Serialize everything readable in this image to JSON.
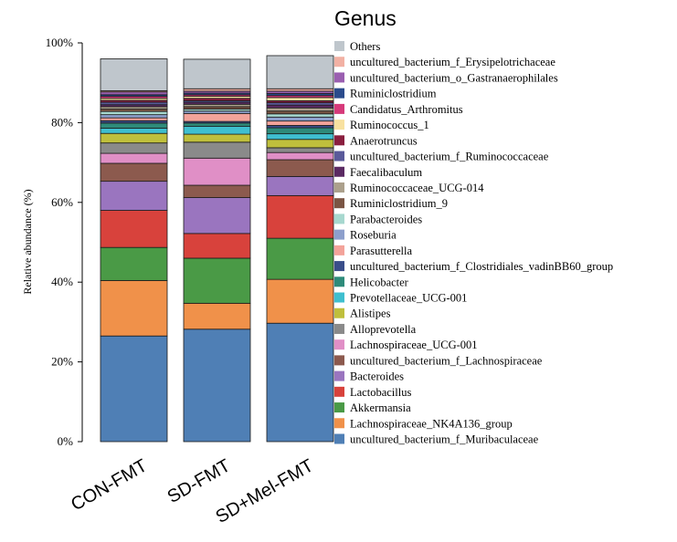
{
  "chart_data": {
    "type": "bar",
    "stacked": true,
    "ylabel": "Relative abundance (%)",
    "ylim": [
      0,
      100
    ],
    "yticks": [
      "0%",
      "20%",
      "40%",
      "60%",
      "80%",
      "100%"
    ],
    "categories": [
      "CON-FMT",
      "SD-FMT",
      "SD+Mel-FMT"
    ],
    "legend_title": "Genus",
    "legend_position": "right",
    "series": [
      {
        "name": "uncultured_bacterium_f_Muribaculaceae",
        "color": "#4f7fb5",
        "values": [
          26.5,
          28.2,
          29.7
        ]
      },
      {
        "name": "Lachnospiraceae_NK4A136_group",
        "color": "#f0914a",
        "values": [
          13.9,
          6.5,
          11.0
        ]
      },
      {
        "name": "Akkermansia",
        "color": "#4a9a46",
        "values": [
          8.3,
          11.3,
          10.3
        ]
      },
      {
        "name": "Lactobacillus",
        "color": "#d8423c",
        "values": [
          9.3,
          6.2,
          10.7
        ]
      },
      {
        "name": "Bacteroides",
        "color": "#9a75bf",
        "values": [
          7.3,
          9.0,
          4.8
        ]
      },
      {
        "name": "uncultured_bacterium_f_Lachnospiraceae",
        "color": "#8c5a4e",
        "values": [
          4.5,
          3.1,
          4.2
        ]
      },
      {
        "name": "Lachnospiraceae_UCG-001",
        "color": "#e08fc6",
        "values": [
          2.5,
          6.8,
          1.8
        ]
      },
      {
        "name": "Alloprevotella",
        "color": "#8a8a8a",
        "values": [
          2.6,
          4.0,
          1.2
        ]
      },
      {
        "name": "Alistipes",
        "color": "#bfbf3c",
        "values": [
          2.4,
          2.0,
          2.1
        ]
      },
      {
        "name": "Prevotellaceae_UCG-001",
        "color": "#3fbfcf",
        "values": [
          1.3,
          2.0,
          1.4
        ]
      },
      {
        "name": "Helicobacter",
        "color": "#2e8b7a",
        "values": [
          1.3,
          0.8,
          1.5
        ]
      },
      {
        "name": "uncultured_bacterium_f_Clostridiales_vadinBB60_group",
        "color": "#3a4e8a",
        "values": [
          0.6,
          0.4,
          0.6
        ]
      },
      {
        "name": "Parasutterella",
        "color": "#f3a39a",
        "values": [
          0.7,
          2.0,
          1.1
        ]
      },
      {
        "name": "Roseburia",
        "color": "#8d9fcc",
        "values": [
          0.8,
          0.6,
          1.0
        ]
      },
      {
        "name": "Parabacteroides",
        "color": "#a7d8cf",
        "values": [
          0.8,
          0.5,
          0.8
        ]
      },
      {
        "name": "Ruminiclostridium_9",
        "color": "#7a5544",
        "values": [
          0.6,
          0.6,
          0.7
        ]
      },
      {
        "name": "Ruminococcaceae_UCG-014",
        "color": "#aca08c",
        "values": [
          0.6,
          0.6,
          0.8
        ]
      },
      {
        "name": "Faecalibaculum",
        "color": "#5b2a63",
        "values": [
          0.5,
          0.5,
          0.7
        ]
      },
      {
        "name": "uncultured_bacterium_f_Ruminococcaceae",
        "color": "#5a5a9a",
        "values": [
          0.6,
          0.4,
          0.6
        ]
      },
      {
        "name": "Anaerotruncus",
        "color": "#8a1f3f",
        "values": [
          0.5,
          0.6,
          0.5
        ]
      },
      {
        "name": "Ruminococcus_1",
        "color": "#f8e1a0",
        "values": [
          0.5,
          0.5,
          0.8
        ]
      },
      {
        "name": "Candidatus_Arthromitus",
        "color": "#d63a7a",
        "values": [
          0.5,
          0.4,
          0.5
        ]
      },
      {
        "name": "Ruminiclostridium",
        "color": "#2b4b8c",
        "values": [
          0.4,
          0.4,
          0.5
        ]
      },
      {
        "name": "uncultured_bacterium_o_Gastranaerophilales",
        "color": "#9a5fb0",
        "values": [
          0.7,
          0.5,
          0.6
        ]
      },
      {
        "name": "uncultured_bacterium_f_Erysipelotrichaceae",
        "color": "#f2b1a4",
        "values": [
          0.3,
          0.6,
          0.6
        ]
      },
      {
        "name": "Others",
        "color": "#bfc6cc",
        "values": [
          8.0,
          7.4,
          8.3
        ]
      }
    ]
  }
}
